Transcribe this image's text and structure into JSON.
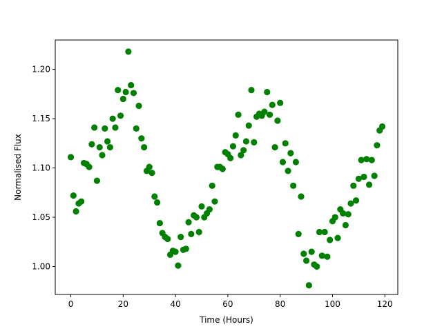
{
  "chart_data": {
    "type": "scatter",
    "title": "",
    "xlabel": "Time (Hours)",
    "ylabel": "Normalised Flux",
    "xlim": [
      -5.95,
      124.95
    ],
    "ylim": [
      0.9717,
      1.2298
    ],
    "xticks": [
      0,
      20,
      40,
      60,
      80,
      100,
      120
    ],
    "yticks": [
      1.0,
      1.05,
      1.1,
      1.15,
      1.2
    ],
    "xtick_labels": [
      "0",
      "20",
      "40",
      "60",
      "80",
      "100",
      "120"
    ],
    "ytick_labels": [
      "1.00",
      "1.05",
      "1.10",
      "1.15",
      "1.20"
    ],
    "grid": false,
    "marker_color": "#008000",
    "series": [
      {
        "x": [
          0,
          1,
          2,
          3,
          4,
          5,
          6,
          7,
          8,
          9,
          10,
          11,
          12,
          13,
          14,
          15,
          16,
          17,
          18,
          19,
          20,
          21,
          22,
          23,
          24,
          25,
          26,
          27,
          28,
          29,
          30,
          31,
          32,
          33,
          34,
          35,
          36,
          37,
          38,
          39,
          40,
          41,
          42,
          43,
          44,
          45,
          46,
          47,
          48,
          49,
          50,
          51,
          52,
          53,
          54,
          55,
          56,
          57,
          58,
          59,
          60,
          61,
          62,
          63,
          64,
          65,
          66,
          67,
          68,
          69,
          70,
          71,
          72,
          73,
          74,
          75,
          76,
          77,
          78,
          79,
          80,
          81,
          82,
          83,
          84,
          85,
          86,
          87,
          88,
          89,
          90,
          91,
          92,
          93,
          94,
          95,
          96,
          97,
          98,
          99,
          100,
          101,
          102,
          103,
          104,
          105,
          106,
          107,
          108,
          109,
          110,
          111,
          112,
          113,
          114,
          115,
          116,
          117,
          118,
          119
        ],
        "y": [
          1.111,
          1.072,
          1.056,
          1.064,
          1.066,
          1.105,
          1.104,
          1.101,
          1.124,
          1.141,
          1.087,
          1.121,
          1.113,
          1.14,
          1.127,
          1.121,
          1.15,
          1.141,
          1.179,
          1.153,
          1.17,
          1.177,
          1.218,
          1.184,
          1.176,
          1.14,
          1.163,
          1.13,
          1.121,
          1.097,
          1.101,
          1.095,
          1.071,
          1.065,
          1.044,
          1.034,
          1.03,
          1.028,
          1.012,
          1.016,
          1.015,
          1.001,
          1.03,
          1.017,
          1.018,
          1.045,
          1.033,
          1.052,
          1.05,
          1.035,
          1.061,
          1.05,
          1.054,
          1.058,
          1.082,
          1.066,
          1.101,
          1.101,
          1.099,
          1.116,
          1.114,
          1.11,
          1.122,
          1.133,
          1.154,
          1.113,
          1.118,
          1.127,
          1.143,
          1.179,
          1.126,
          1.152,
          1.155,
          1.153,
          1.157,
          1.177,
          1.154,
          1.164,
          1.121,
          1.148,
          1.166,
          1.106,
          1.125,
          1.097,
          1.115,
          1.082,
          1.106,
          1.033,
          1.071,
          1.013,
          1.006,
          0.981,
          1.015,
          1.002,
          1.0,
          1.035,
          1.011,
          1.035,
          1.01,
          1.027,
          1.046,
          1.05,
          1.029,
          1.058,
          1.054,
          1.042,
          1.053,
          1.064,
          1.082,
          1.067,
          1.089,
          1.108,
          1.091,
          1.109,
          1.083,
          1.108,
          1.092,
          1.123,
          1.138,
          1.142
        ]
      }
    ]
  }
}
